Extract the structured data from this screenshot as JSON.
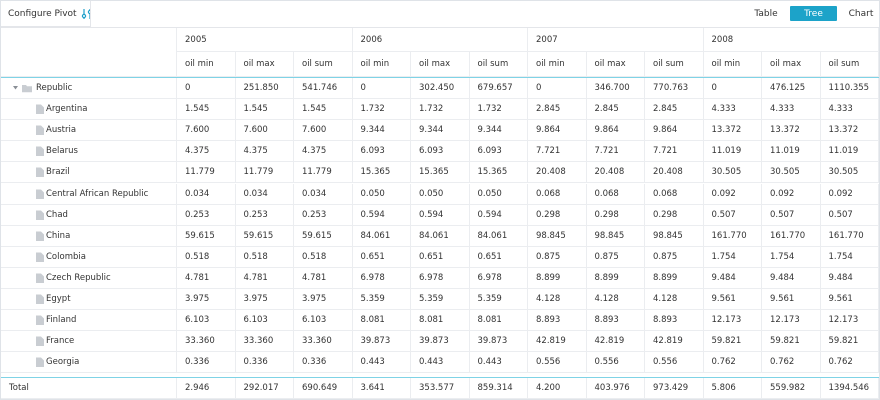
{
  "toolbar": {
    "title": "Configure Pivot",
    "modes": [
      "Table",
      "Tree",
      "Chart"
    ],
    "active_mode": 1
  },
  "table": {
    "years": [
      "2005",
      "2006",
      "2007",
      "2008"
    ],
    "measures": [
      "oil min",
      "oil max",
      "oil sum"
    ],
    "root": {
      "label": "Republic",
      "values": [
        "0",
        "251.850",
        "541.746",
        "0",
        "302.450",
        "679.657",
        "0",
        "346.700",
        "770.763",
        "0",
        "476.125",
        "1110.355"
      ]
    },
    "rows": [
      {
        "label": "Argentina",
        "values": [
          "1.545",
          "1.545",
          "1.545",
          "1.732",
          "1.732",
          "1.732",
          "2.845",
          "2.845",
          "2.845",
          "4.333",
          "4.333",
          "4.333"
        ]
      },
      {
        "label": "Austria",
        "values": [
          "7.600",
          "7.600",
          "7.600",
          "9.344",
          "9.344",
          "9.344",
          "9.864",
          "9.864",
          "9.864",
          "13.372",
          "13.372",
          "13.372"
        ]
      },
      {
        "label": "Belarus",
        "values": [
          "4.375",
          "4.375",
          "4.375",
          "6.093",
          "6.093",
          "6.093",
          "7.721",
          "7.721",
          "7.721",
          "11.019",
          "11.019",
          "11.019"
        ]
      },
      {
        "label": "Brazil",
        "values": [
          "11.779",
          "11.779",
          "11.779",
          "15.365",
          "15.365",
          "15.365",
          "20.408",
          "20.408",
          "20.408",
          "30.505",
          "30.505",
          "30.505"
        ]
      },
      {
        "label": "Central African Republic",
        "values": [
          "0.034",
          "0.034",
          "0.034",
          "0.050",
          "0.050",
          "0.050",
          "0.068",
          "0.068",
          "0.068",
          "0.092",
          "0.092",
          "0.092"
        ]
      },
      {
        "label": "Chad",
        "values": [
          "0.253",
          "0.253",
          "0.253",
          "0.594",
          "0.594",
          "0.594",
          "0.298",
          "0.298",
          "0.298",
          "0.507",
          "0.507",
          "0.507"
        ]
      },
      {
        "label": "China",
        "values": [
          "59.615",
          "59.615",
          "59.615",
          "84.061",
          "84.061",
          "84.061",
          "98.845",
          "98.845",
          "98.845",
          "161.770",
          "161.770",
          "161.770"
        ]
      },
      {
        "label": "Colombia",
        "values": [
          "0.518",
          "0.518",
          "0.518",
          "0.651",
          "0.651",
          "0.651",
          "0.875",
          "0.875",
          "0.875",
          "1.754",
          "1.754",
          "1.754"
        ]
      },
      {
        "label": "Czech Republic",
        "values": [
          "4.781",
          "4.781",
          "4.781",
          "6.978",
          "6.978",
          "6.978",
          "8.899",
          "8.899",
          "8.899",
          "9.484",
          "9.484",
          "9.484"
        ]
      },
      {
        "label": "Egypt",
        "values": [
          "3.975",
          "3.975",
          "3.975",
          "5.359",
          "5.359",
          "5.359",
          "4.128",
          "4.128",
          "4.128",
          "9.561",
          "9.561",
          "9.561"
        ]
      },
      {
        "label": "Finland",
        "values": [
          "6.103",
          "6.103",
          "6.103",
          "8.081",
          "8.081",
          "8.081",
          "8.893",
          "8.893",
          "8.893",
          "12.173",
          "12.173",
          "12.173"
        ]
      },
      {
        "label": "France",
        "values": [
          "33.360",
          "33.360",
          "33.360",
          "39.873",
          "39.873",
          "39.873",
          "42.819",
          "42.819",
          "42.819",
          "59.821",
          "59.821",
          "59.821"
        ]
      },
      {
        "label": "Georgia",
        "values": [
          "0.336",
          "0.336",
          "0.336",
          "0.443",
          "0.443",
          "0.443",
          "0.556",
          "0.556",
          "0.556",
          "0.762",
          "0.762",
          "0.762"
        ]
      }
    ],
    "total": {
      "label": "Total",
      "values": [
        "2.946",
        "292.017",
        "690.649",
        "3.641",
        "353.577",
        "859.314",
        "4.200",
        "403.976",
        "973.429",
        "5.806",
        "559.982",
        "1394.546"
      ]
    }
  }
}
